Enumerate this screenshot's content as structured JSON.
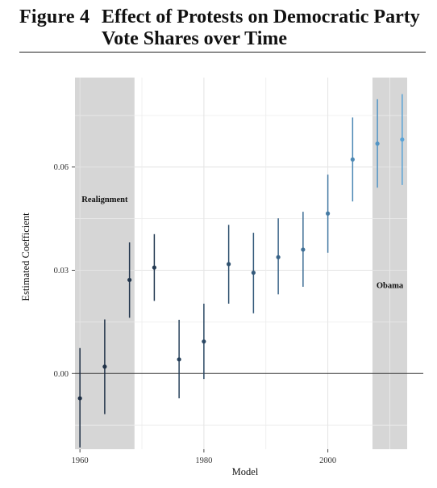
{
  "figure": {
    "label": "Figure 4",
    "title": "Effect of Protests on Democratic Party Vote Shares over Time"
  },
  "chart_data": {
    "type": "scatter",
    "title": "Effect of Protests on Democratic Party Vote Shares over Time",
    "xlabel": "Model",
    "ylabel": "Estimated Coefficient",
    "xlim": [
      1959.2,
      2012.8
    ],
    "ylim": [
      -0.022,
      0.086
    ],
    "x_ticks": [
      1960,
      1980,
      2000
    ],
    "y_ticks": [
      0.0,
      0.03,
      0.06
    ],
    "y_tick_labels": [
      "0.00",
      "0.03",
      "0.06"
    ],
    "grid": true,
    "reference_line_y": 0.0,
    "shaded_regions": [
      {
        "label": "Realignment",
        "x_start": 1959.2,
        "x_end": 1968.8
      },
      {
        "label": "Obama",
        "x_start": 2007.2,
        "x_end": 2012.8
      }
    ],
    "color_gradient": [
      "#1e2f45",
      "#5aa3d6"
    ],
    "points": [
      {
        "x": 1960,
        "y": -0.0072,
        "low": -0.0215,
        "high": 0.0074
      },
      {
        "x": 1964,
        "y": 0.002,
        "low": -0.0118,
        "high": 0.0157
      },
      {
        "x": 1968,
        "y": 0.0272,
        "low": 0.0162,
        "high": 0.0381
      },
      {
        "x": 1972,
        "y": 0.0308,
        "low": 0.0211,
        "high": 0.0405
      },
      {
        "x": 1976,
        "y": 0.0041,
        "low": -0.0072,
        "high": 0.0156
      },
      {
        "x": 1980,
        "y": 0.0093,
        "low": -0.0016,
        "high": 0.0203
      },
      {
        "x": 1984,
        "y": 0.0318,
        "low": 0.0203,
        "high": 0.0432
      },
      {
        "x": 1988,
        "y": 0.0293,
        "low": 0.0175,
        "high": 0.0409
      },
      {
        "x": 1992,
        "y": 0.0338,
        "low": 0.023,
        "high": 0.0451
      },
      {
        "x": 1996,
        "y": 0.036,
        "low": 0.0252,
        "high": 0.047
      },
      {
        "x": 2000,
        "y": 0.0465,
        "low": 0.0351,
        "high": 0.0578
      },
      {
        "x": 2004,
        "y": 0.0622,
        "low": 0.05,
        "high": 0.0744
      },
      {
        "x": 2008,
        "y": 0.0668,
        "low": 0.054,
        "high": 0.0797
      },
      {
        "x": 2012,
        "y": 0.068,
        "low": 0.0548,
        "high": 0.0812
      }
    ]
  }
}
